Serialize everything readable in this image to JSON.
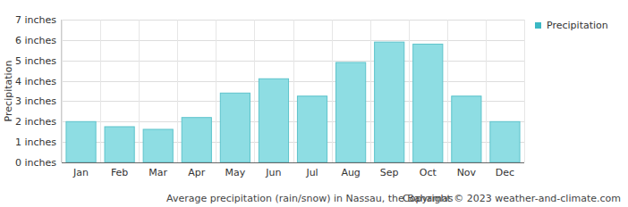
{
  "chart_data": {
    "type": "bar",
    "title": "Average precipitation (rain/snow) in Nassau, the Bahamas",
    "annotations": [
      "Copyright © 2023  weather-and-climate.com"
    ],
    "y_label": "Precipitation",
    "categories": [
      "Jan",
      "Feb",
      "Mar",
      "Apr",
      "May",
      "Jun",
      "Jul",
      "Aug",
      "Sep",
      "Oct",
      "Nov",
      "Dec"
    ],
    "series": [
      {
        "name": "Precipitation",
        "color": "#8edde3",
        "values": [
          2.0,
          1.75,
          1.62,
          2.2,
          3.4,
          4.1,
          3.25,
          4.9,
          5.9,
          5.8,
          3.25,
          2.0
        ]
      }
    ],
    "ylim": [
      0,
      7
    ],
    "yticks": [
      {
        "value": 0,
        "label": "0 inches"
      },
      {
        "value": 1,
        "label": "1 inches"
      },
      {
        "value": 2,
        "label": "2 inches"
      },
      {
        "value": 3,
        "label": "3 inches"
      },
      {
        "value": 4,
        "label": "4 inches"
      },
      {
        "value": 5,
        "label": "5 inches"
      },
      {
        "value": 6,
        "label": "6 inches"
      },
      {
        "value": 7,
        "label": "7 inches"
      }
    ],
    "grid": true,
    "legend": "right"
  }
}
